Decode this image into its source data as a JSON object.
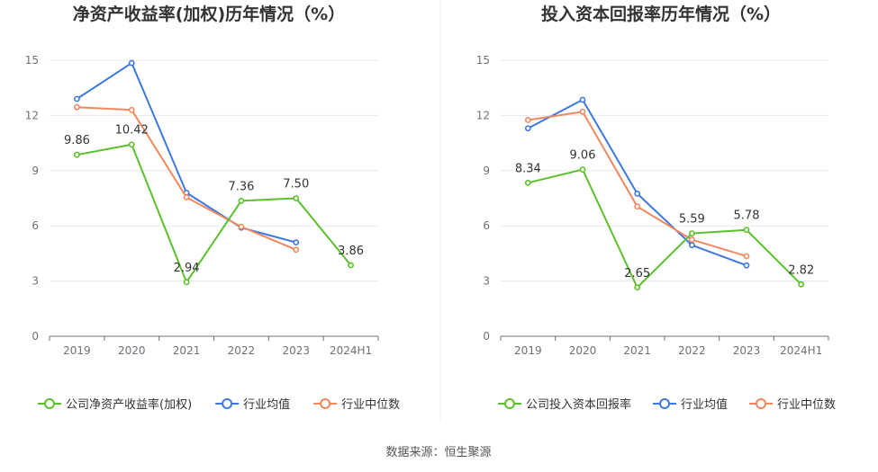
{
  "colors": {
    "company": "#5bc02b",
    "industry_avg": "#3d78e0",
    "industry_median": "#f2875e"
  },
  "source": "数据来源：恒生聚源",
  "chart_data": [
    {
      "type": "line",
      "title": "净资产收益率(加权)历年情况（%）",
      "categories": [
        "2019",
        "2020",
        "2021",
        "2022",
        "2023",
        "2024H1"
      ],
      "ylim": [
        0,
        15
      ],
      "yticks": [
        0,
        3,
        6,
        9,
        12,
        15
      ],
      "series": [
        {
          "key": "company",
          "name": "公司净资产收益率(加权)",
          "values": [
            9.86,
            10.42,
            2.94,
            7.36,
            7.5,
            3.86
          ],
          "labels": [
            "9.86",
            "10.42",
            "2.94",
            "7.36",
            "7.50",
            "3.86"
          ]
        },
        {
          "key": "industry_avg",
          "name": "行业均值",
          "values": [
            12.9,
            14.85,
            7.8,
            5.9,
            5.1,
            null
          ]
        },
        {
          "key": "industry_median",
          "name": "行业中位数",
          "values": [
            12.45,
            12.3,
            7.55,
            5.95,
            4.7,
            null
          ]
        }
      ]
    },
    {
      "type": "line",
      "title": "投入资本回报率历年情况（%）",
      "categories": [
        "2019",
        "2020",
        "2021",
        "2022",
        "2023",
        "2024H1"
      ],
      "ylim": [
        0,
        15
      ],
      "yticks": [
        0,
        3,
        6,
        9,
        12,
        15
      ],
      "series": [
        {
          "key": "company",
          "name": "公司投入资本回报率",
          "values": [
            8.34,
            9.06,
            2.65,
            5.59,
            5.78,
            2.82
          ],
          "labels": [
            "8.34",
            "9.06",
            "2.65",
            "5.59",
            "5.78",
            "2.82"
          ]
        },
        {
          "key": "industry_avg",
          "name": "行业均值",
          "values": [
            11.3,
            12.85,
            7.75,
            4.95,
            3.85,
            null
          ]
        },
        {
          "key": "industry_median",
          "name": "行业中位数",
          "values": [
            11.75,
            12.2,
            7.05,
            5.25,
            4.35,
            null
          ]
        }
      ]
    }
  ]
}
